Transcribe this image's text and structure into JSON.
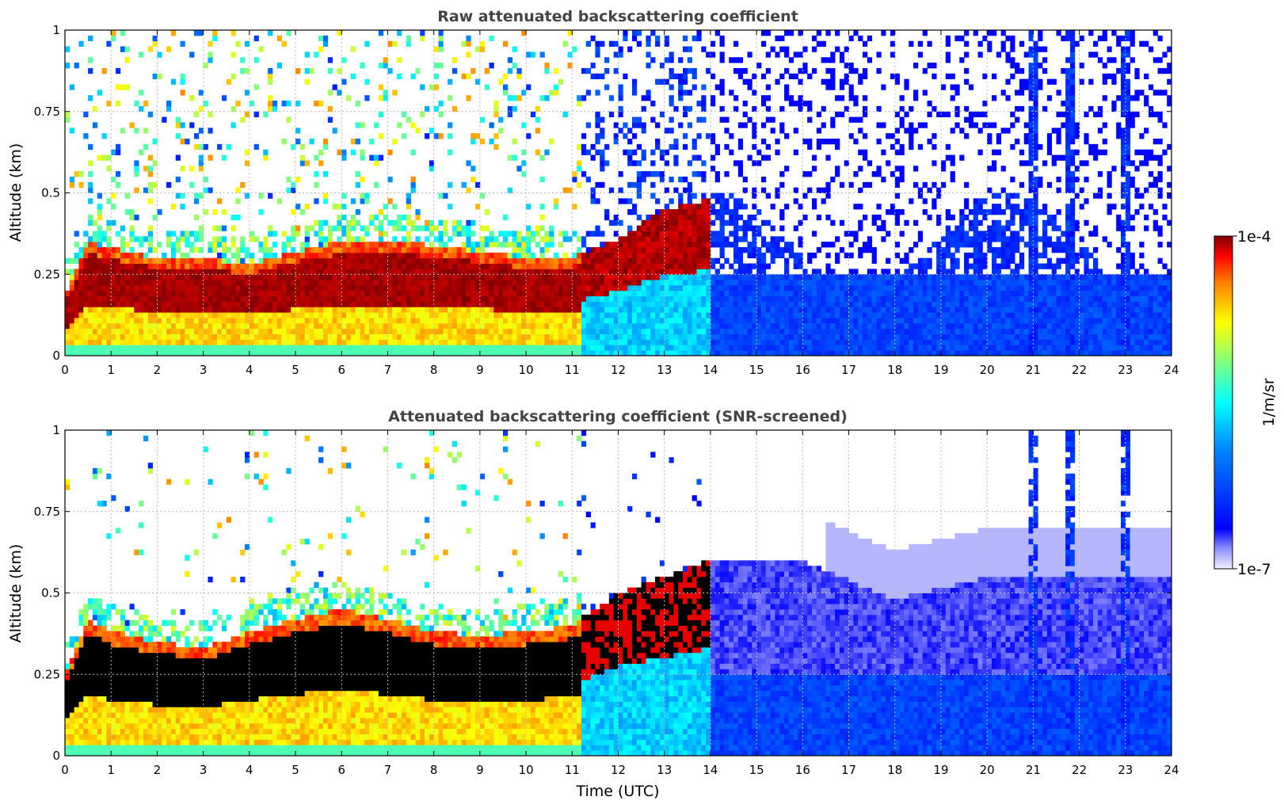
{
  "chart_data": [
    {
      "type": "heatmap",
      "title": "Raw attenuated backscattering coefficient",
      "xlabel": "",
      "ylabel": "Altitude (km)",
      "xlim": [
        0,
        24
      ],
      "ylim": [
        0,
        1
      ],
      "x_ticks": [
        "0",
        "1",
        "2",
        "3",
        "4",
        "5",
        "6",
        "7",
        "8",
        "9",
        "10",
        "11",
        "12",
        "13",
        "14",
        "15",
        "16",
        "17",
        "18",
        "19",
        "20",
        "21",
        "22",
        "23",
        "24"
      ],
      "y_ticks": [
        {
          "v": 0,
          "label": "0"
        },
        {
          "v": 0.25,
          "label": "0.25"
        },
        {
          "v": 0.5,
          "label": "0.5"
        },
        {
          "v": 0.75,
          "label": "0.75"
        },
        {
          "v": 1,
          "label": "1"
        }
      ],
      "grid": true,
      "colorscale": "jet",
      "layer_top_km": [
        {
          "t": 0,
          "z": 0.18
        },
        {
          "t": 0.5,
          "z": 0.35
        },
        {
          "t": 1,
          "z": 0.33
        },
        {
          "t": 2,
          "z": 0.3
        },
        {
          "t": 3,
          "z": 0.3
        },
        {
          "t": 4,
          "z": 0.28
        },
        {
          "t": 5,
          "z": 0.32
        },
        {
          "t": 6,
          "z": 0.35
        },
        {
          "t": 7,
          "z": 0.35
        },
        {
          "t": 8,
          "z": 0.34
        },
        {
          "t": 9,
          "z": 0.32
        },
        {
          "t": 10,
          "z": 0.3
        },
        {
          "t": 11,
          "z": 0.3
        },
        {
          "t": 12,
          "z": 0.36
        },
        {
          "t": 13,
          "z": 0.45
        },
        {
          "t": 14,
          "z": 0.48
        }
      ]
    },
    {
      "type": "heatmap",
      "title": "Attenuated backscattering coefficient (SNR-screened)",
      "xlabel": "Time (UTC)",
      "ylabel": "Altitude (km)",
      "xlim": [
        0,
        24
      ],
      "ylim": [
        0,
        1
      ],
      "x_ticks": [
        "0",
        "1",
        "2",
        "3",
        "4",
        "5",
        "6",
        "7",
        "8",
        "9",
        "10",
        "11",
        "12",
        "13",
        "14",
        "15",
        "16",
        "17",
        "18",
        "19",
        "20",
        "21",
        "22",
        "23",
        "24"
      ],
      "y_ticks": [
        {
          "v": 0,
          "label": "0"
        },
        {
          "v": 0.25,
          "label": "0.25"
        },
        {
          "v": 0.5,
          "label": "0.5"
        },
        {
          "v": 0.75,
          "label": "0.75"
        },
        {
          "v": 1,
          "label": "1"
        }
      ],
      "grid": true,
      "colorscale": "jet",
      "layer_top_km": [
        {
          "t": 0,
          "z": 0.25
        },
        {
          "t": 0.5,
          "z": 0.42
        },
        {
          "t": 1,
          "z": 0.38
        },
        {
          "t": 2,
          "z": 0.35
        },
        {
          "t": 3,
          "z": 0.33
        },
        {
          "t": 4,
          "z": 0.38
        },
        {
          "t": 5,
          "z": 0.42
        },
        {
          "t": 6,
          "z": 0.45
        },
        {
          "t": 7,
          "z": 0.42
        },
        {
          "t": 8,
          "z": 0.38
        },
        {
          "t": 9,
          "z": 0.37
        },
        {
          "t": 10,
          "z": 0.38
        },
        {
          "t": 11,
          "z": 0.4
        },
        {
          "t": 12,
          "z": 0.5
        },
        {
          "t": 13,
          "z": 0.55
        },
        {
          "t": 14,
          "z": 0.6
        },
        {
          "t": 16,
          "z": 0.6
        },
        {
          "t": 18,
          "z": 0.48
        },
        {
          "t": 20,
          "z": 0.55
        },
        {
          "t": 24,
          "z": 0.55
        }
      ]
    }
  ],
  "colorbar": {
    "label": "1/m/sr",
    "max_label": "1e-4",
    "min_label": "1e-7",
    "scale": "log"
  },
  "colors": {
    "jet": [
      "#f0f0ff",
      "#0000ff",
      "#0080ff",
      "#00ffff",
      "#80ff80",
      "#ffff00",
      "#ff8000",
      "#ff0000",
      "#800000"
    ],
    "title": "#444444",
    "grid": "#bbbbbb"
  }
}
